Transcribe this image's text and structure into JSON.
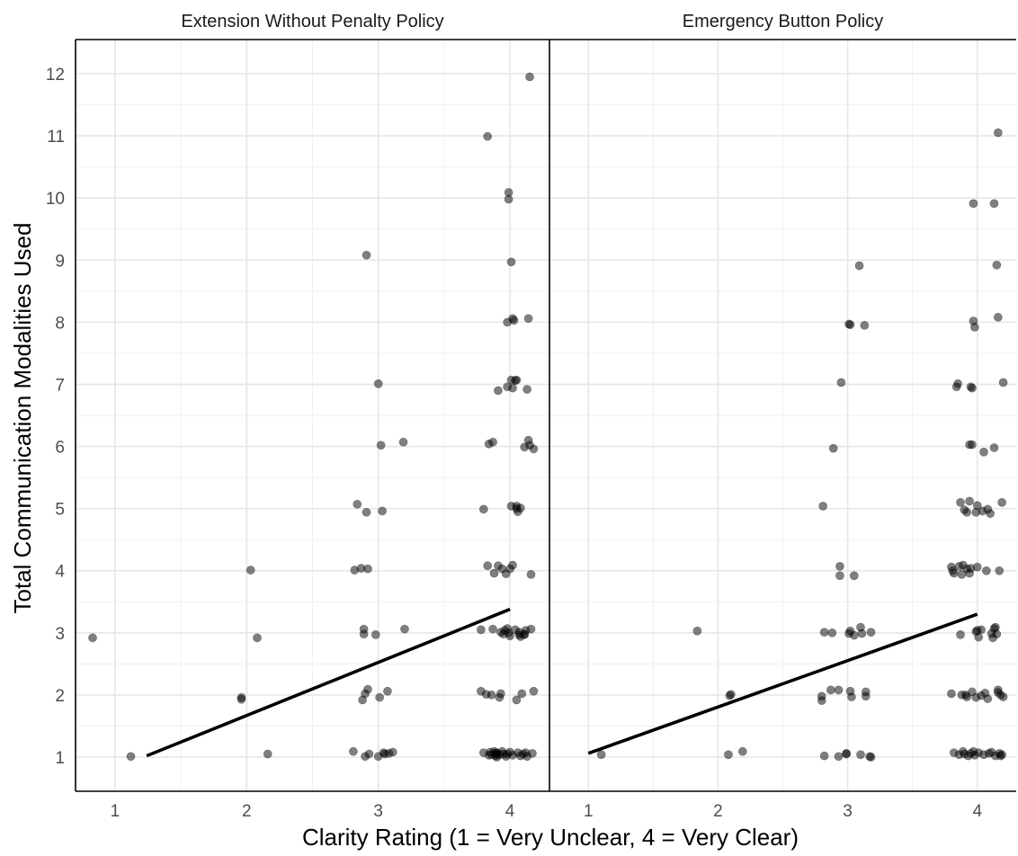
{
  "chart_data": {
    "type": "scatter",
    "xlabel": "Clarity Rating (1 = Very Unclear, 4 = Very Clear)",
    "ylabel": "Total Communication Modalities Used",
    "grid": true,
    "panels": [
      {
        "title": "Extension Without Penalty Policy",
        "xlim": [
          0.7,
          4.3
        ],
        "ylim": [
          0.45,
          12.55
        ],
        "x_ticks": [
          "1",
          "2",
          "3",
          "4"
        ],
        "y_ticks": [
          "1",
          "2",
          "3",
          "4",
          "5",
          "6",
          "7",
          "8",
          "9",
          "10",
          "11",
          "12"
        ],
        "trend_line": {
          "x": [
            1.24,
            4.0
          ],
          "y": [
            1.02,
            3.38
          ]
        },
        "points": [
          [
            0.83,
            2.92
          ],
          [
            1.12,
            1.01
          ],
          [
            1.96,
            1.96
          ],
          [
            1.96,
            1.93
          ],
          [
            2.03,
            4.01
          ],
          [
            2.08,
            2.92
          ],
          [
            2.16,
            1.05
          ],
          [
            2.81,
            1.09
          ],
          [
            2.82,
            4.01
          ],
          [
            2.84,
            5.07
          ],
          [
            2.87,
            4.04
          ],
          [
            2.88,
            1.92
          ],
          [
            2.89,
            3.06
          ],
          [
            2.89,
            2.98
          ],
          [
            2.9,
            1.01
          ],
          [
            2.9,
            2.02
          ],
          [
            2.91,
            9.08
          ],
          [
            2.91,
            4.94
          ],
          [
            2.92,
            4.03
          ],
          [
            2.92,
            2.09
          ],
          [
            2.93,
            1.05
          ],
          [
            2.98,
            2.97
          ],
          [
            3.0,
            1.01
          ],
          [
            3.0,
            7.01
          ],
          [
            3.01,
            1.96
          ],
          [
            3.02,
            6.02
          ],
          [
            3.03,
            4.96
          ],
          [
            3.04,
            1.07
          ],
          [
            3.05,
            1.05
          ],
          [
            3.07,
            2.06
          ],
          [
            3.08,
            1.06
          ],
          [
            3.11,
            1.08
          ],
          [
            3.19,
            6.07
          ],
          [
            3.2,
            3.06
          ],
          [
            3.78,
            2.06
          ],
          [
            3.78,
            3.05
          ],
          [
            3.8,
            4.99
          ],
          [
            3.8,
            1.07
          ],
          [
            3.82,
            2.01
          ],
          [
            3.83,
            4.08
          ],
          [
            3.83,
            10.99
          ],
          [
            3.84,
            6.04
          ],
          [
            3.84,
            1.03
          ],
          [
            3.85,
            1.08
          ],
          [
            3.86,
            1.04
          ],
          [
            3.86,
            2.0
          ],
          [
            3.87,
            6.07
          ],
          [
            3.87,
            3.06
          ],
          [
            3.88,
            1.09
          ],
          [
            3.88,
            3.96
          ],
          [
            3.89,
            1.06
          ],
          [
            3.89,
            1.02
          ],
          [
            3.9,
            1.05
          ],
          [
            3.9,
            1.07
          ],
          [
            3.9,
            1.0
          ],
          [
            3.91,
            4.08
          ],
          [
            3.91,
            6.9
          ],
          [
            3.92,
            1.04
          ],
          [
            3.92,
            1.96
          ],
          [
            3.93,
            3.01
          ],
          [
            3.94,
            1.09
          ],
          [
            3.94,
            4.03
          ],
          [
            3.95,
            2.98
          ],
          [
            3.95,
            1.05
          ],
          [
            3.96,
            3.04
          ],
          [
            3.97,
            1.01
          ],
          [
            3.97,
            3.95
          ],
          [
            3.98,
            8.0
          ],
          [
            3.98,
            6.96
          ],
          [
            3.98,
            1.05
          ],
          [
            3.98,
            3.07
          ],
          [
            3.99,
            10.09
          ],
          [
            3.99,
            9.98
          ],
          [
            3.99,
            3.0
          ],
          [
            4.0,
            4.03
          ],
          [
            4.0,
            2.95
          ],
          [
            4.0,
            1.08
          ],
          [
            4.01,
            5.04
          ],
          [
            4.01,
            8.97
          ],
          [
            4.01,
            7.07
          ],
          [
            4.02,
            6.94
          ],
          [
            4.02,
            8.06
          ],
          [
            4.02,
            1.03
          ],
          [
            4.02,
            4.09
          ],
          [
            4.03,
            8.03
          ],
          [
            4.04,
            3.05
          ],
          [
            4.04,
            7.06
          ],
          [
            4.05,
            7.07
          ],
          [
            4.05,
            5.04
          ],
          [
            4.05,
            5.0
          ],
          [
            4.06,
            1.07
          ],
          [
            4.06,
            4.95
          ],
          [
            4.07,
            2.97
          ],
          [
            4.07,
            3.01
          ],
          [
            4.08,
            5.01
          ],
          [
            4.08,
            2.94
          ],
          [
            4.08,
            1.02
          ],
          [
            4.09,
            2.02
          ],
          [
            4.1,
            1.05
          ],
          [
            4.11,
            5.99
          ],
          [
            4.11,
            2.97
          ],
          [
            4.12,
            3.04
          ],
          [
            4.12,
            1.07
          ],
          [
            4.13,
            1.01
          ],
          [
            4.13,
            6.92
          ],
          [
            4.14,
            6.1
          ],
          [
            4.14,
            8.06
          ],
          [
            4.15,
            11.95
          ],
          [
            4.15,
            6.02
          ],
          [
            4.16,
            3.06
          ],
          [
            4.16,
            3.94
          ],
          [
            4.17,
            1.06
          ],
          [
            4.18,
            5.96
          ],
          [
            4.18,
            2.06
          ],
          [
            4.05,
            1.92
          ],
          [
            3.93,
            2.02
          ],
          [
            4.11,
            2.98
          ]
        ]
      },
      {
        "title": "Emergency Button Policy",
        "xlim": [
          0.7,
          4.3
        ],
        "ylim": [
          0.45,
          12.55
        ],
        "x_ticks": [
          "1",
          "2",
          "3",
          "4"
        ],
        "y_ticks": [
          "1",
          "2",
          "3",
          "4",
          "5",
          "6",
          "7",
          "8",
          "9",
          "10",
          "11",
          "12"
        ],
        "trend_line": {
          "x": [
            1.0,
            4.0
          ],
          "y": [
            1.06,
            3.3
          ]
        },
        "points": [
          [
            1.1,
            1.04
          ],
          [
            1.84,
            3.03
          ],
          [
            2.08,
            1.04
          ],
          [
            2.09,
            1.99
          ],
          [
            2.1,
            2.01
          ],
          [
            2.19,
            1.09
          ],
          [
            2.8,
            1.98
          ],
          [
            2.8,
            1.91
          ],
          [
            2.81,
            5.04
          ],
          [
            2.82,
            3.01
          ],
          [
            2.82,
            1.02
          ],
          [
            2.87,
            2.08
          ],
          [
            2.88,
            3.0
          ],
          [
            2.89,
            5.97
          ],
          [
            2.93,
            2.08
          ],
          [
            2.93,
            1.01
          ],
          [
            2.94,
            4.07
          ],
          [
            2.94,
            3.92
          ],
          [
            2.95,
            7.03
          ],
          [
            2.99,
            1.05
          ],
          [
            2.99,
            1.06
          ],
          [
            3.01,
            2.99
          ],
          [
            3.01,
            7.97
          ],
          [
            3.02,
            7.96
          ],
          [
            3.02,
            2.06
          ],
          [
            3.02,
            3.03
          ],
          [
            3.03,
            1.97
          ],
          [
            3.05,
            3.92
          ],
          [
            3.05,
            2.96
          ],
          [
            3.09,
            8.91
          ],
          [
            3.1,
            1.04
          ],
          [
            3.1,
            3.09
          ],
          [
            3.11,
            2.99
          ],
          [
            3.13,
            7.95
          ],
          [
            3.14,
            2.05
          ],
          [
            3.14,
            1.98
          ],
          [
            3.17,
            1.01
          ],
          [
            3.18,
            1.0
          ],
          [
            3.18,
            3.01
          ],
          [
            3.8,
            2.02
          ],
          [
            3.8,
            4.06
          ],
          [
            3.81,
            4.0
          ],
          [
            3.82,
            1.07
          ],
          [
            3.82,
            3.96
          ],
          [
            3.84,
            6.96
          ],
          [
            3.85,
            7.01
          ],
          [
            3.86,
            4.07
          ],
          [
            3.86,
            1.04
          ],
          [
            3.87,
            2.97
          ],
          [
            3.87,
            5.1
          ],
          [
            3.88,
            2.0
          ],
          [
            3.88,
            3.94
          ],
          [
            3.89,
            1.09
          ],
          [
            3.89,
            4.09
          ],
          [
            3.9,
            4.98
          ],
          [
            3.9,
            1.05
          ],
          [
            3.91,
            2.0
          ],
          [
            3.92,
            4.94
          ],
          [
            3.92,
            4.03
          ],
          [
            3.93,
            1.02
          ],
          [
            3.94,
            3.96
          ],
          [
            3.94,
            6.03
          ],
          [
            3.94,
            5.12
          ],
          [
            3.95,
            6.96
          ],
          [
            3.95,
            4.04
          ],
          [
            3.95,
            1.06
          ],
          [
            3.96,
            6.03
          ],
          [
            3.96,
            6.94
          ],
          [
            3.96,
            2.05
          ],
          [
            3.97,
            8.02
          ],
          [
            3.97,
            9.91
          ],
          [
            3.97,
            1.09
          ],
          [
            3.98,
            7.92
          ],
          [
            3.98,
            1.03
          ],
          [
            3.99,
            3.02
          ],
          [
            3.99,
            4.94
          ],
          [
            3.99,
            1.96
          ],
          [
            4.0,
            5.05
          ],
          [
            4.0,
            4.06
          ],
          [
            4.01,
            2.93
          ],
          [
            4.01,
            1.07
          ],
          [
            4.03,
            3.05
          ],
          [
            4.03,
            1.99
          ],
          [
            4.04,
            4.96
          ],
          [
            4.05,
            5.91
          ],
          [
            4.05,
            1.04
          ],
          [
            4.06,
            2.03
          ],
          [
            4.07,
            4.0
          ],
          [
            4.08,
            4.99
          ],
          [
            4.08,
            1.94
          ],
          [
            4.09,
            1.06
          ],
          [
            4.1,
            4.92
          ],
          [
            4.11,
            1.08
          ],
          [
            4.11,
            2.99
          ],
          [
            4.12,
            2.92
          ],
          [
            4.13,
            9.91
          ],
          [
            4.13,
            3.07
          ],
          [
            4.13,
            5.98
          ],
          [
            4.14,
            1.02
          ],
          [
            4.14,
            3.09
          ],
          [
            4.15,
            8.92
          ],
          [
            4.15,
            2.98
          ],
          [
            4.16,
            11.05
          ],
          [
            4.16,
            8.08
          ],
          [
            4.16,
            2.04
          ],
          [
            4.17,
            1.06
          ],
          [
            4.17,
            4.0
          ],
          [
            4.18,
            1.02
          ],
          [
            4.18,
            2.0
          ],
          [
            4.19,
            5.1
          ],
          [
            4.19,
            1.04
          ],
          [
            4.2,
            7.03
          ],
          [
            4.2,
            1.97
          ],
          [
            4.16,
            2.08
          ],
          [
            4.0,
            3.04
          ],
          [
            3.92,
            1.97
          ]
        ]
      }
    ]
  }
}
